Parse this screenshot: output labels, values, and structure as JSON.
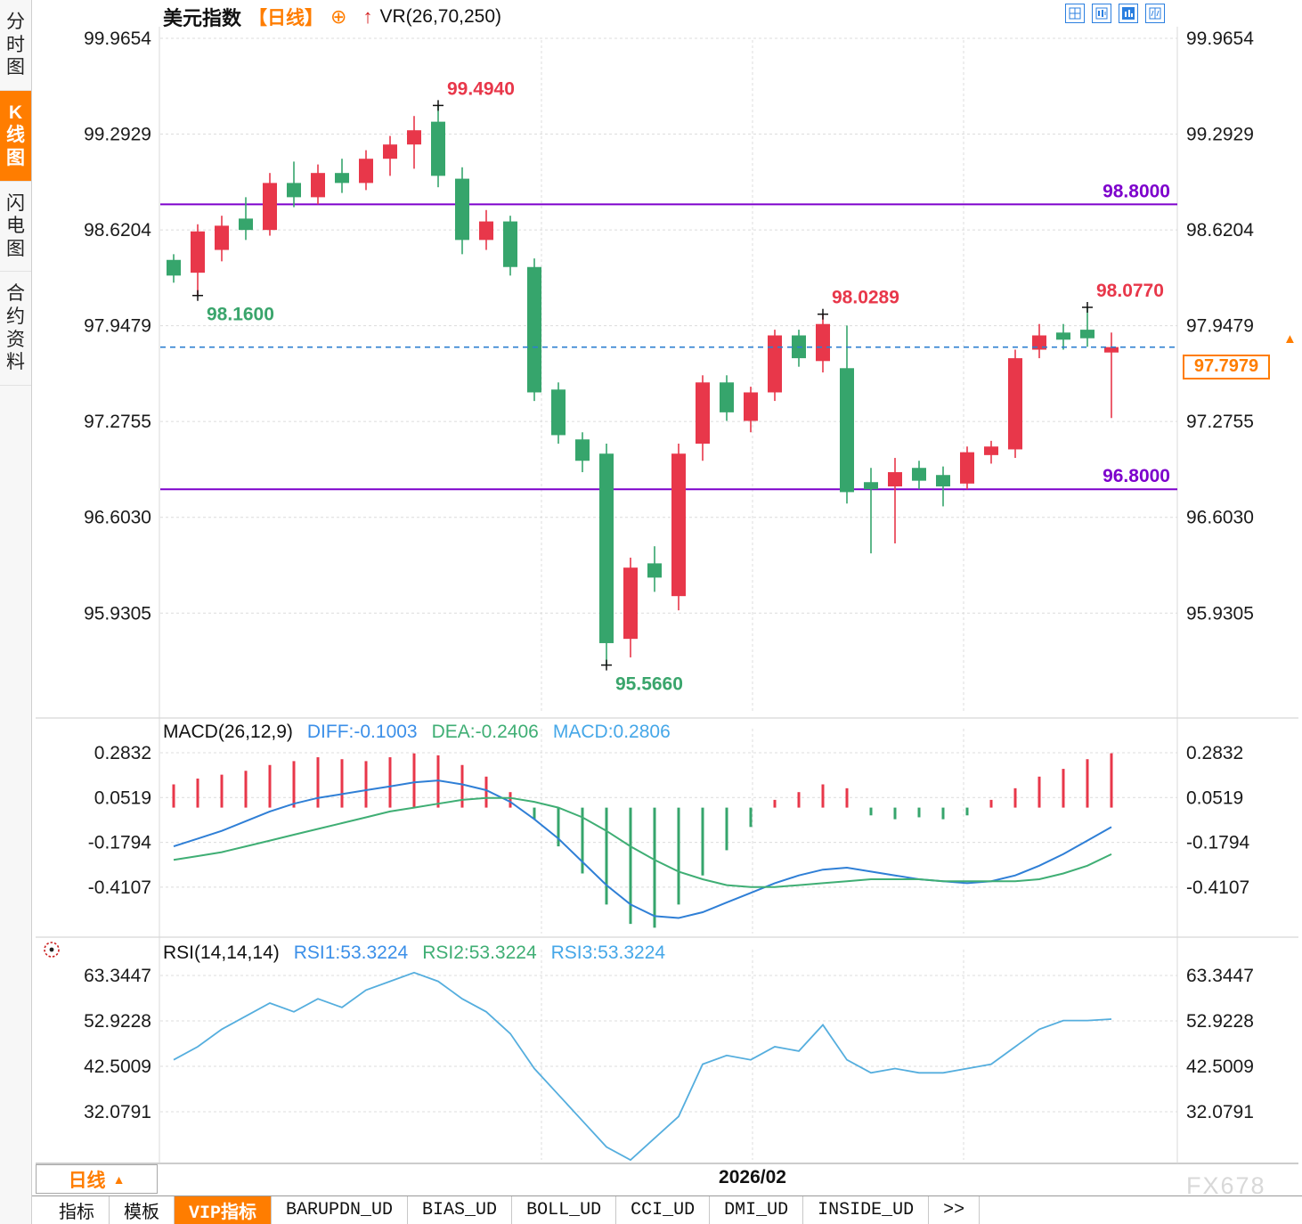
{
  "colors": {
    "up": "#e8374a",
    "down": "#36a56c",
    "accent": "#ff7d00",
    "level_purple": "#7d00cc",
    "price_line_blue": "#2d7fd0",
    "diff_blue": "#2f7fd6",
    "dea_green": "#3fae74",
    "rsi_line": "#55aede",
    "toolbar_blue": "#2b7fe0"
  },
  "sidebar": {
    "items": [
      {
        "label": "分时图",
        "active": false
      },
      {
        "label": "K线图",
        "active": true
      },
      {
        "label": "闪电图",
        "active": false
      },
      {
        "label": "合约资料",
        "active": false
      }
    ]
  },
  "header": {
    "symbol": "美元指数",
    "period_tag": "【日线】",
    "plus_icon": "⊕",
    "arrow_icon": "↑",
    "indicator": "VR(26,70,250)"
  },
  "top_icons": [
    "grid-layout-icon",
    "pane-chart-icon",
    "bar-chart-icon",
    "split-chart-icon"
  ],
  "chart_data": [
    {
      "type": "candlestick",
      "name": "美元指数 日线 K线图",
      "y_ticks": [
        99.9654,
        99.2929,
        98.6204,
        97.9479,
        97.2755,
        96.603,
        95.9305
      ],
      "ylim": [
        95.2,
        100.05
      ],
      "grid": "dashed",
      "x_axis_label": "2026/02",
      "candles": [
        [
          98.41,
          98.45,
          98.25,
          98.3
        ],
        [
          98.32,
          98.66,
          98.16,
          98.61
        ],
        [
          98.48,
          98.72,
          98.4,
          98.65
        ],
        [
          98.7,
          98.85,
          98.55,
          98.62
        ],
        [
          98.62,
          99.02,
          98.58,
          98.95
        ],
        [
          98.95,
          99.1,
          98.78,
          98.85
        ],
        [
          98.85,
          99.08,
          98.8,
          99.02
        ],
        [
          99.02,
          99.12,
          98.88,
          98.95
        ],
        [
          98.95,
          99.18,
          98.9,
          99.12
        ],
        [
          99.12,
          99.28,
          99.0,
          99.22
        ],
        [
          99.22,
          99.42,
          99.05,
          99.32
        ],
        [
          99.38,
          99.494,
          98.92,
          99.0
        ],
        [
          98.98,
          99.06,
          98.45,
          98.55
        ],
        [
          98.55,
          98.76,
          98.48,
          98.68
        ],
        [
          98.68,
          98.72,
          98.3,
          98.36
        ],
        [
          98.36,
          98.42,
          97.42,
          97.48
        ],
        [
          97.5,
          97.55,
          97.12,
          97.18
        ],
        [
          97.15,
          97.2,
          96.92,
          97.0
        ],
        [
          97.05,
          97.12,
          95.566,
          95.72
        ],
        [
          95.75,
          96.32,
          95.62,
          96.25
        ],
        [
          96.28,
          96.4,
          96.08,
          96.18
        ],
        [
          96.05,
          97.12,
          95.95,
          97.05
        ],
        [
          97.12,
          97.6,
          97.0,
          97.55
        ],
        [
          97.55,
          97.6,
          97.28,
          97.34
        ],
        [
          97.28,
          97.52,
          97.2,
          97.48
        ],
        [
          97.48,
          97.92,
          97.42,
          97.88
        ],
        [
          97.88,
          97.92,
          97.66,
          97.72
        ],
        [
          97.7,
          98.0289,
          97.62,
          97.96
        ],
        [
          97.65,
          97.95,
          96.7,
          96.78
        ],
        [
          96.85,
          96.95,
          96.35,
          96.8
        ],
        [
          96.82,
          97.02,
          96.42,
          96.92
        ],
        [
          96.95,
          97.0,
          96.8,
          96.86
        ],
        [
          96.9,
          96.96,
          96.68,
          96.82
        ],
        [
          96.84,
          97.1,
          96.8,
          97.06
        ],
        [
          97.04,
          97.14,
          96.98,
          97.1
        ],
        [
          97.08,
          97.78,
          97.02,
          97.72
        ],
        [
          97.78,
          97.96,
          97.72,
          97.88
        ],
        [
          97.9,
          97.96,
          97.78,
          97.85
        ],
        [
          97.92,
          98.077,
          97.8,
          97.86
        ],
        [
          97.76,
          97.9,
          97.3,
          97.7979
        ]
      ],
      "levels": [
        {
          "label": "98.8000",
          "value": 98.8,
          "color": "#7d00cc"
        },
        {
          "label": "96.8000",
          "value": 96.8,
          "color": "#7d00cc"
        }
      ],
      "current_price": {
        "label": "97.7979",
        "value": 97.7979,
        "arrow": "▲"
      },
      "annotations": [
        {
          "label": "99.4940",
          "value": 99.494,
          "candle": 11,
          "color": "#e8374a",
          "side": "above-right"
        },
        {
          "label": "98.1600",
          "value": 98.16,
          "candle": 1,
          "color": "#3aa56c",
          "side": "below-right"
        },
        {
          "label": "95.5660",
          "value": 95.566,
          "candle": 18,
          "color": "#3aa56c",
          "side": "below-right"
        },
        {
          "label": "98.0289",
          "value": 98.0289,
          "candle": 27,
          "color": "#e8374a",
          "side": "above-right"
        },
        {
          "label": "98.0770",
          "value": 98.077,
          "candle": 38,
          "color": "#e8374a",
          "side": "above-right"
        }
      ]
    },
    {
      "type": "bar",
      "name": "MACD",
      "title": "MACD(26,12,9)",
      "legend": {
        "diff": "DIFF:-0.1003",
        "dea": "DEA:-0.2406",
        "macd": "MACD:0.2806"
      },
      "y_ticks": [
        0.2832,
        0.0519,
        -0.1794,
        -0.4107
      ],
      "hist": [
        0.12,
        0.15,
        0.17,
        0.19,
        0.22,
        0.24,
        0.26,
        0.25,
        0.24,
        0.26,
        0.28,
        0.27,
        0.22,
        0.16,
        0.08,
        -0.06,
        -0.2,
        -0.34,
        -0.5,
        -0.6,
        -0.62,
        -0.5,
        -0.35,
        -0.22,
        -0.1,
        0.04,
        0.08,
        0.12,
        0.1,
        -0.04,
        -0.06,
        -0.05,
        -0.06,
        -0.04,
        0.04,
        0.1,
        0.16,
        0.2,
        0.25,
        0.2806
      ],
      "diff": [
        -0.2,
        -0.16,
        -0.12,
        -0.07,
        -0.02,
        0.02,
        0.05,
        0.07,
        0.09,
        0.11,
        0.13,
        0.14,
        0.12,
        0.09,
        0.03,
        -0.06,
        -0.16,
        -0.28,
        -0.4,
        -0.5,
        -0.56,
        -0.57,
        -0.54,
        -0.49,
        -0.44,
        -0.39,
        -0.35,
        -0.32,
        -0.31,
        -0.33,
        -0.35,
        -0.37,
        -0.38,
        -0.39,
        -0.38,
        -0.35,
        -0.3,
        -0.24,
        -0.17,
        -0.1003
      ],
      "dea": [
        -0.27,
        -0.25,
        -0.23,
        -0.2,
        -0.17,
        -0.14,
        -0.11,
        -0.08,
        -0.05,
        -0.02,
        0.0,
        0.02,
        0.04,
        0.05,
        0.05,
        0.03,
        0.0,
        -0.05,
        -0.12,
        -0.2,
        -0.27,
        -0.33,
        -0.37,
        -0.4,
        -0.41,
        -0.41,
        -0.4,
        -0.39,
        -0.38,
        -0.37,
        -0.37,
        -0.37,
        -0.38,
        -0.38,
        -0.38,
        -0.38,
        -0.37,
        -0.34,
        -0.3,
        -0.2406
      ]
    },
    {
      "type": "line",
      "name": "RSI",
      "title": "RSI(14,14,14)",
      "legend": {
        "rsi1": "RSI1:53.3224",
        "rsi2": "RSI2:53.3224",
        "rsi3": "RSI3:53.3224"
      },
      "y_ticks": [
        63.3447,
        52.9228,
        42.5009,
        32.0791
      ],
      "rsi": [
        44,
        47,
        51,
        54,
        57,
        55,
        58,
        56,
        60,
        62,
        64,
        62,
        58,
        55,
        50,
        42,
        36,
        30,
        24,
        21,
        26,
        31,
        43,
        45,
        44,
        47,
        46,
        52,
        44,
        41,
        42,
        41,
        41,
        42,
        43,
        47,
        51,
        53,
        53,
        53.3224
      ]
    }
  ],
  "bottom": {
    "period_label": "日线",
    "period_arrow": "▲",
    "date_label": "2026/02",
    "watermark": "FX678"
  },
  "tabs": {
    "items": [
      {
        "label": "指标",
        "active": false
      },
      {
        "label": "模板",
        "active": false
      },
      {
        "label": "VIP指标",
        "active": true
      },
      {
        "label": "BARUPDN_UD",
        "active": false
      },
      {
        "label": "BIAS_UD",
        "active": false
      },
      {
        "label": "BOLL_UD",
        "active": false
      },
      {
        "label": "CCI_UD",
        "active": false
      },
      {
        "label": "DMI_UD",
        "active": false
      },
      {
        "label": "INSIDE_UD",
        "active": false
      },
      {
        "label": ">>",
        "active": false
      }
    ]
  }
}
